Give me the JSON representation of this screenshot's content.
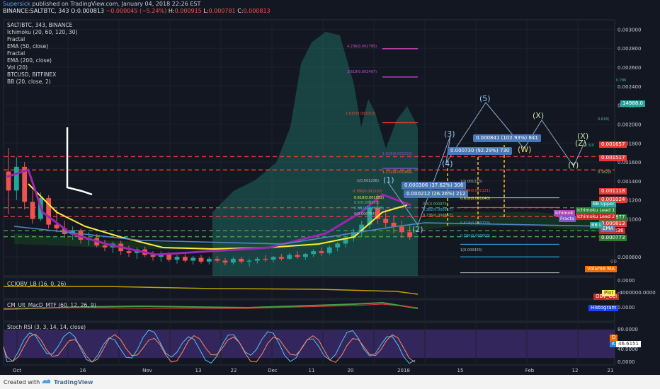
{
  "header": {
    "author": "Supersick",
    "published": "published on TradingView.com, January 04, 2018 22:26 EST",
    "symbol": "BINANCE:SALTBTC, 343",
    "ohlc_o_label": "O:",
    "ohlc_o": "0.000813",
    "change": "−0.000045 (−5.24%)",
    "ohlc_h_label": "H:",
    "ohlc_h": "0.000915",
    "ohlc_l_label": "L:",
    "ohlc_l": "0.000781",
    "ohlc_c_label": "C:",
    "ohlc_c": "0.000813"
  },
  "legend": [
    "SALT/BTC, 343, BINANCE",
    "Ichimoku (20, 60, 120, 30)",
    "Fractal",
    "EMA (50, close)",
    "Fractal",
    "EMA (200, close)",
    "Vol (20)",
    "BTCUSD, BITFINEX",
    "BB (20, close, 2)"
  ],
  "panes": {
    "ccio": "CCIOBV_LB (16, 0, 26)",
    "macd": "CM_Ult_MacD_MTF (60, 12, 26, 9)",
    "stoch": "Stoch RSI (3, 3, 14, 14, close)"
  },
  "price_axis_ticks": [
    "0.003000",
    "0.002800",
    "0.002600",
    "0.002400",
    "0.002200",
    "0.002000",
    "0.001800",
    "0.001600",
    "0.001400",
    "0.001200",
    "0.001000",
    "0.000600"
  ],
  "btc_axis": {
    "value": "14988.0",
    "ref_786": "0.786",
    "ref_618": "0.618(",
    "ref_500": "0.5(0",
    "ref_382": "0.382(0"
  },
  "right_tags": [
    {
      "text": "0.001657",
      "color": "#e53935"
    },
    {
      "text": "0.001517",
      "color": "#e53935"
    },
    {
      "text": "0.001118",
      "color": "#e53935"
    },
    {
      "text": "0.001024",
      "color": "#e53935"
    },
    {
      "text": "0.000877",
      "color": "#2e7d32"
    },
    {
      "text": "0.000813",
      "color": "#e53935"
    },
    {
      "text": "02:16:36",
      "color": "#c62828"
    },
    {
      "text": "0.000773",
      "color": "#2e7d32"
    },
    {
      "text": "EMA",
      "color": "#5b7fa6"
    },
    {
      "text": "Volume MA",
      "color": "#ef6c00"
    },
    {
      "text": "00",
      "color": "#8a8a8a"
    }
  ],
  "object_labels": [
    {
      "text": "Ichimoku Lead 1",
      "color": "#2e7d32"
    },
    {
      "text": "Ichimoku Lead 2",
      "color": "#c62828"
    },
    {
      "text": "Ichimok",
      "color": "#ab47bc"
    },
    {
      "text": "Fracta",
      "color": "#7e57c2"
    },
    {
      "text": "BB Upper",
      "color": "#26a69a"
    },
    {
      "text": "BB L",
      "color": "#26a69a"
    }
  ],
  "ccio_axis": {
    "zero": "0.0000",
    "neg": "-4000000.0000",
    "tag1": "OBV_CCI",
    "tag2": "Plot"
  },
  "macd_axis": {
    "zero": "0.0000",
    "tag": "Histogram"
  },
  "stoch_axis": {
    "top": "80.0000",
    "mid": "40.0000",
    "bottom": "0.0000",
    "tagD": "D",
    "tagK": "K",
    "value": "46.6151"
  },
  "time_axis": [
    "Oct",
    "16",
    "Nov",
    "13",
    "22",
    "Dec",
    "11",
    "20",
    "2018",
    "15",
    "Feb",
    "12",
    "21"
  ],
  "measure_boxes": [
    "0.000841 (102.93%) 841",
    "0.000730 (92.29%) 730",
    "0.000306 (37.62%) 306",
    "0.000212 (26.26%) 212"
  ],
  "waves": [
    "(1)",
    "(2)",
    "(3)",
    "(4)",
    "(5)",
    "(W)",
    "(X)",
    "(Y)",
    "(X)",
    "(Z)"
  ],
  "fib_left": [
    "4.236(0.002795)",
    "3.618(0.002497)",
    "2.618(0.002015)",
    "1.618(0.001533)",
    "1.272(0.001366)",
    "1(0.001236)",
    "0.786(0.001133)",
    "0.618(0.001052)",
    "0.5(0.000995)",
    "0.382(0.000938)",
    "0(0.000754)"
  ],
  "fib_right": [
    "1(0.001223)",
    "0.786(0.001121)",
    "0.618(0.001040)",
    "0.5(0.000975)",
    "0.382(0.000917)",
    "0.236(0.000857)",
    "0.618(0.000733)",
    "0.786(0.000600)",
    "1(0.000433)"
  ],
  "footer": {
    "created": "Created with",
    "brand": "TradingView"
  },
  "colors": {
    "bg": "#131722",
    "up": "#26a69a",
    "down": "#ef5350",
    "btc": "#1f6f63",
    "ema50": "#ffeb3b",
    "fractal": "#9c27b0",
    "bb": "#4f88c6"
  },
  "chart_data": {
    "type": "candlestick",
    "title": "SALT/BTC, 343, BINANCE",
    "ylim": [
      0.0004,
      0.0031
    ],
    "last_ohlc": {
      "o": 0.000813,
      "h": 0.000915,
      "l": 0.000781,
      "c": 0.000813
    },
    "candles": [
      [
        0.0015,
        0.00175,
        0.00105,
        0.0013
      ],
      [
        0.0013,
        0.00165,
        0.0012,
        0.00155
      ],
      [
        0.00155,
        0.0016,
        0.0011,
        0.00118
      ],
      [
        0.00118,
        0.0013,
        0.00095,
        0.001
      ],
      [
        0.001,
        0.00128,
        0.00098,
        0.00122
      ],
      [
        0.00122,
        0.00125,
        0.0009,
        0.00094
      ],
      [
        0.00094,
        0.0011,
        0.00086,
        0.0009
      ],
      [
        0.0009,
        0.00098,
        0.0008,
        0.00084
      ],
      [
        0.00084,
        0.00092,
        0.00078,
        0.00088
      ],
      [
        0.00088,
        0.0009,
        0.00074,
        0.00078
      ],
      [
        0.00078,
        0.00086,
        0.00072,
        0.0008
      ],
      [
        0.0008,
        0.00084,
        0.0007,
        0.00072
      ],
      [
        0.00072,
        0.00078,
        0.00066,
        0.0007
      ],
      [
        0.0007,
        0.00076,
        0.00064,
        0.00074
      ],
      [
        0.00074,
        0.00077,
        0.00062,
        0.00066
      ],
      [
        0.00066,
        0.00072,
        0.0006,
        0.00064
      ],
      [
        0.00064,
        0.0007,
        0.00058,
        0.00068
      ],
      [
        0.00068,
        0.00071,
        0.0006,
        0.00062
      ],
      [
        0.00062,
        0.00066,
        0.00056,
        0.0006
      ],
      [
        0.0006,
        0.00066,
        0.00055,
        0.00063
      ],
      [
        0.00063,
        0.00065,
        0.00055,
        0.00057
      ],
      [
        0.00057,
        0.00062,
        0.00053,
        0.0006
      ],
      [
        0.0006,
        0.00063,
        0.00054,
        0.00056
      ],
      [
        0.00056,
        0.00061,
        0.00052,
        0.00059
      ],
      [
        0.00059,
        0.00062,
        0.00053,
        0.00055
      ],
      [
        0.00055,
        0.0006,
        0.00052,
        0.00058
      ],
      [
        0.00058,
        0.00061,
        0.00054,
        0.00056
      ],
      [
        0.00056,
        0.00059,
        0.00051,
        0.00054
      ],
      [
        0.00054,
        0.0006,
        0.00052,
        0.00058
      ],
      [
        0.00058,
        0.0006,
        0.00053,
        0.00055
      ],
      [
        0.00055,
        0.00058,
        0.0005,
        0.00056
      ],
      [
        0.00056,
        0.0006,
        0.00053,
        0.00058
      ],
      [
        0.00058,
        0.00062,
        0.00055,
        0.00057
      ],
      [
        0.00057,
        0.00061,
        0.00054,
        0.0006
      ],
      [
        0.0006,
        0.00063,
        0.00056,
        0.00058
      ],
      [
        0.00058,
        0.00064,
        0.00057,
        0.00062
      ],
      [
        0.00062,
        0.00066,
        0.00058,
        0.0006
      ],
      [
        0.0006,
        0.00064,
        0.00057,
        0.00063
      ],
      [
        0.00063,
        0.00068,
        0.0006,
        0.00066
      ],
      [
        0.00066,
        0.0007,
        0.00061,
        0.00064
      ],
      [
        0.00064,
        0.00072,
        0.00062,
        0.0007
      ],
      [
        0.0007,
        0.00076,
        0.00066,
        0.00074
      ],
      [
        0.00074,
        0.00082,
        0.0007,
        0.0008
      ],
      [
        0.0008,
        0.0009,
        0.00076,
        0.00086
      ],
      [
        0.00086,
        0.00098,
        0.00082,
        0.00094
      ],
      [
        0.00094,
        0.0012,
        0.0009,
        0.00112
      ],
      [
        0.00112,
        0.00126,
        0.00095,
        0.001
      ],
      [
        0.001,
        0.0011,
        0.0009,
        0.00096
      ],
      [
        0.00096,
        0.00104,
        0.00085,
        0.00092
      ],
      [
        0.00092,
        0.00098,
        0.0008,
        0.00086
      ],
      [
        0.00086,
        0.00094,
        0.00078,
        0.00081
      ]
    ]
  }
}
